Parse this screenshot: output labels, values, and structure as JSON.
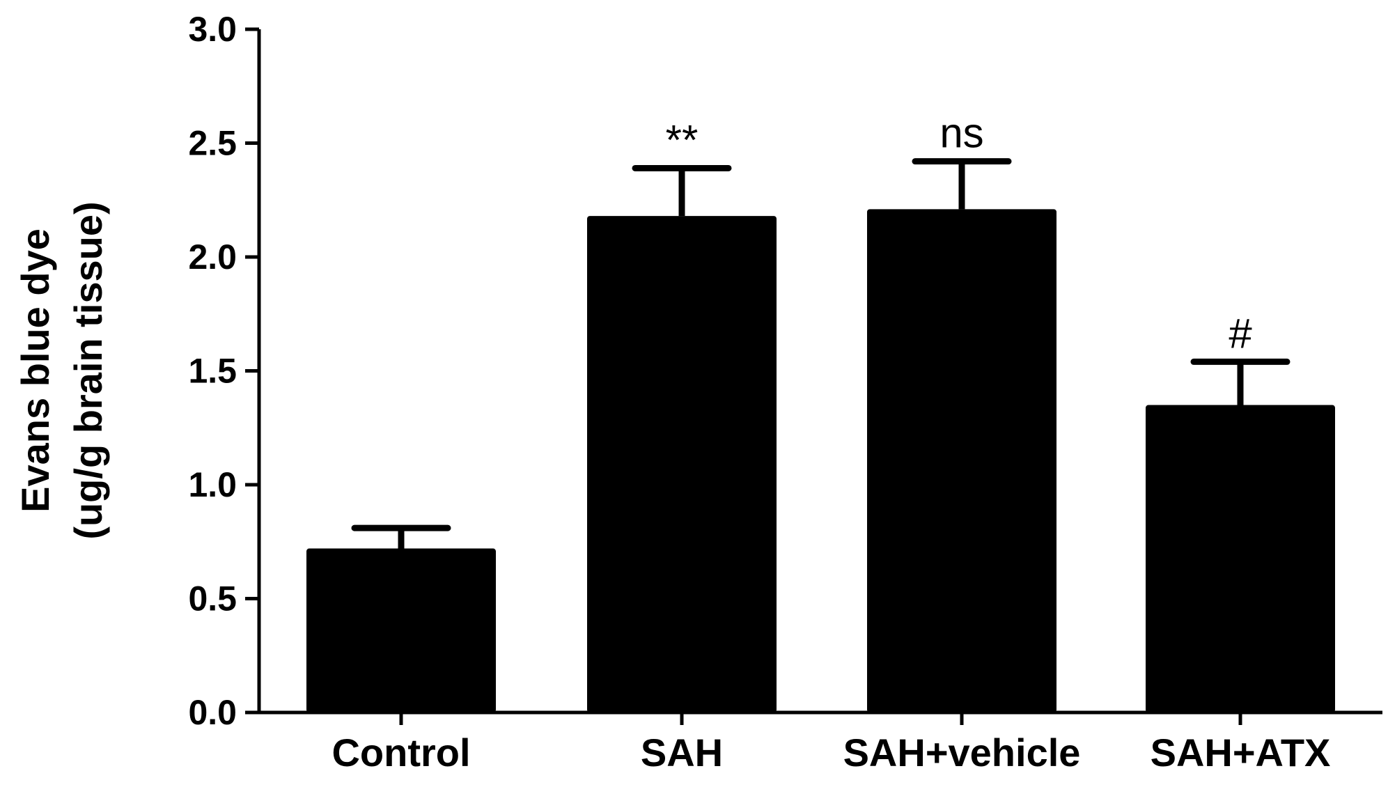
{
  "chart_data": {
    "type": "bar",
    "title": "",
    "xlabel": "",
    "ylabel_line1": "Evans blue dye",
    "ylabel_line2": "(ug/g brain tissue)",
    "ylim": [
      0,
      3.0
    ],
    "yticks": [
      "0.0",
      "0.5",
      "1.0",
      "1.5",
      "2.0",
      "2.5",
      "3.0"
    ],
    "categories": [
      "Control",
      "SAH",
      "SAH+vehicle",
      "SAH+ATX"
    ],
    "values": [
      0.72,
      2.18,
      2.21,
      1.35
    ],
    "errors": [
      0.09,
      0.21,
      0.21,
      0.19
    ],
    "annotations": [
      "",
      "**",
      "ns",
      "#"
    ],
    "bar_color": "#000000",
    "grid": false,
    "legend": "none"
  }
}
